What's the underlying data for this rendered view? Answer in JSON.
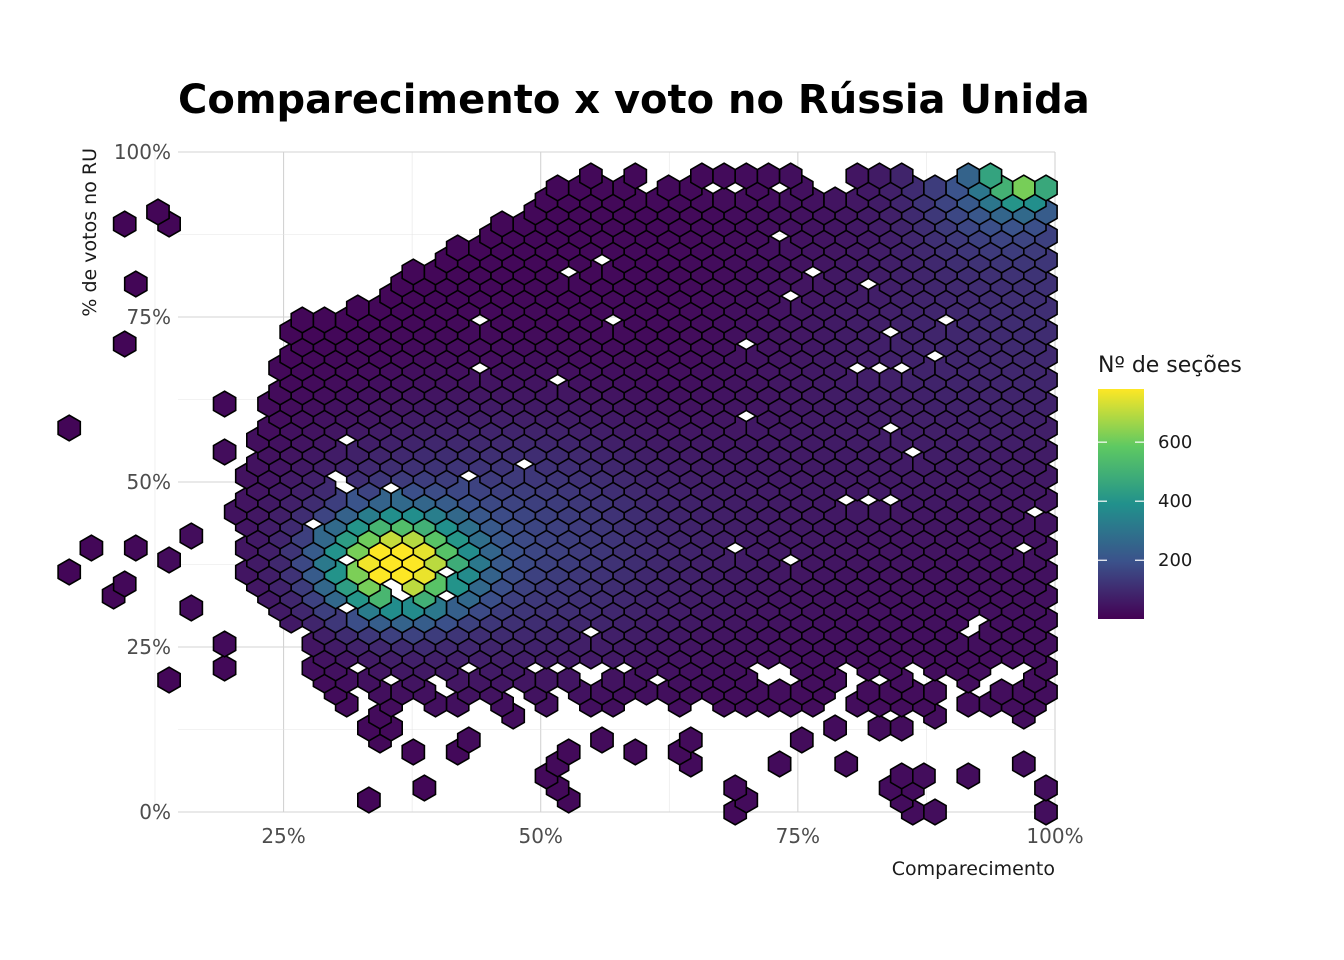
{
  "chart_data": {
    "type": "hexbin",
    "title": "Comparecimento x voto no Rússia Unida",
    "xlabel": "Comparecimento",
    "ylabel": "% de votos no RU",
    "xlim": [
      0.02,
      1.0
    ],
    "ylim": [
      0.0,
      1.0
    ],
    "x_ticks": [
      {
        "value": 0.25,
        "label": "25%"
      },
      {
        "value": 0.5,
        "label": "50%"
      },
      {
        "value": 0.75,
        "label": "75%"
      },
      {
        "value": 1.0,
        "label": "100%"
      }
    ],
    "y_ticks": [
      {
        "value": 0.0,
        "label": "0%"
      },
      {
        "value": 0.25,
        "label": "25%"
      },
      {
        "value": 0.5,
        "label": "50%"
      },
      {
        "value": 0.75,
        "label": "75%"
      },
      {
        "value": 1.0,
        "label": "100%"
      }
    ],
    "grid": true,
    "legend": {
      "title": "Nº de seções",
      "position": "right",
      "min": 1,
      "max": 780,
      "ticks": [
        {
          "value": 200,
          "label": "200"
        },
        {
          "value": 400,
          "label": "400"
        },
        {
          "value": 600,
          "label": "600"
        }
      ],
      "palette": [
        "#440154",
        "#3b528b",
        "#21918c",
        "#5ec962",
        "#fde725"
      ]
    },
    "density_peaks": [
      {
        "x": 0.36,
        "y": 0.38,
        "count": 780
      },
      {
        "x": 0.97,
        "y": 0.97,
        "count": 560
      }
    ]
  }
}
